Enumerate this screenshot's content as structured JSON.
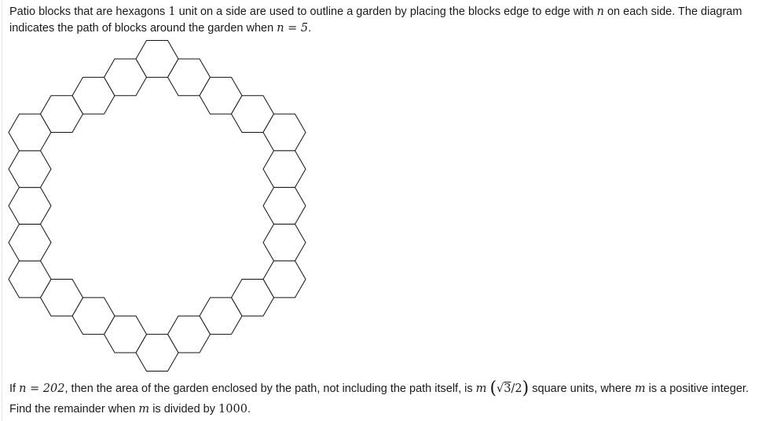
{
  "problem": {
    "intro_text_1": "Patio blocks that are hexagons ",
    "side_length": "1",
    "intro_text_2": " unit on a side are used to outline a garden by placing the blocks edge to edge with ",
    "var_n": "n",
    "intro_text_3": " on each side. The diagram indicates the path of blocks around the garden when ",
    "eq_n5": "n = 5",
    "intro_text_4": ".",
    "q_if": "If ",
    "eq_n202": "n = 202",
    "q_text_1": ", then the area of the garden enclosed by the path, not including the path itself, is ",
    "var_m": "m",
    "sqrt_arg": "3",
    "frac_den": "/2",
    "q_text_2": " square units, where ",
    "q_text_3": " is a positive integer. Find the remainder when ",
    "q_text_4": " is divided by ",
    "modulus": "1000",
    "q_text_5": "."
  },
  "diagram": {
    "n": 5,
    "hexagon_count": 24
  }
}
